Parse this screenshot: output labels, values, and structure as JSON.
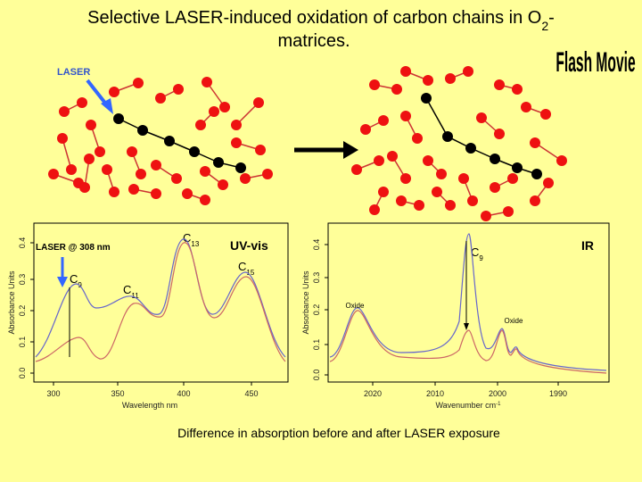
{
  "title": {
    "text": "Selective LASER-induced oxidation of carbon chains in O",
    "subscript": "2",
    "suffix": "-",
    "line2": "matrices."
  },
  "flash_label": "Flash Movie",
  "laser_label": "LASER",
  "uv_vis": {
    "label": "UV-vis",
    "annotation": "LASER @ 308 nm",
    "peaks": [
      {
        "text": "C",
        "sub": "9"
      },
      {
        "text": "C",
        "sub": "11"
      },
      {
        "text": "C",
        "sub": "13"
      },
      {
        "text": "C",
        "sub": "15"
      }
    ],
    "y_axis_label": "Absorbance Units",
    "x_axis_label": "Wavelength nm",
    "yticks": [
      "0.0",
      "0.1",
      "0.2",
      "0.3",
      "0.4"
    ],
    "xticks": [
      "300",
      "350",
      "400",
      "450"
    ]
  },
  "ir": {
    "label": "IR",
    "peaks": [
      {
        "text": "C",
        "sub": "9"
      }
    ],
    "oxide_labels": [
      "Oxide",
      "Oxide"
    ],
    "y_axis_label": "Absorbance Units",
    "x_axis_label": "Wavenumber cm",
    "x_axis_label_sup": "-1",
    "yticks": [
      "0.0",
      "0.1",
      "0.2",
      "0.3",
      "0.4"
    ],
    "xticks": [
      "2020",
      "2010",
      "2000",
      "1990"
    ]
  },
  "caption": "Difference in absorption before and after LASER exposure"
}
